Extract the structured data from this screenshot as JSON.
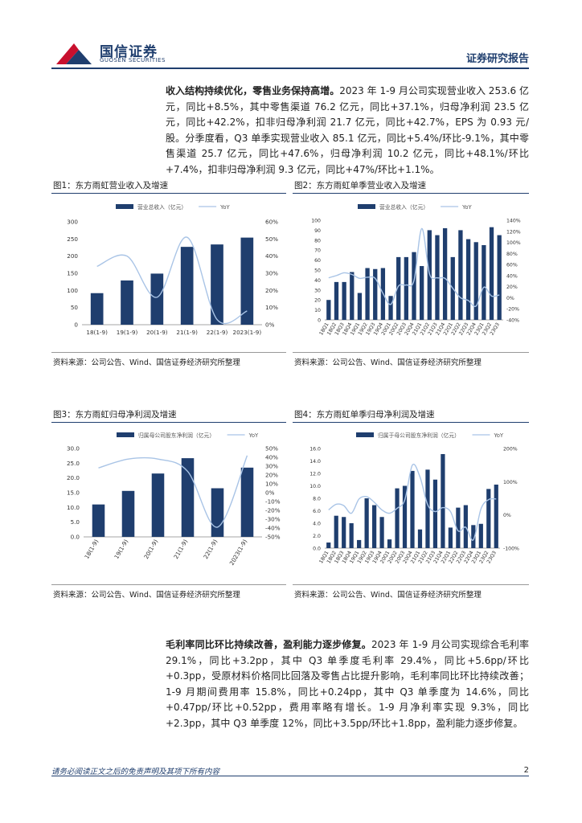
{
  "header": {
    "logo_cn": "国信证券",
    "logo_en": "GUOSEN SECURITIES",
    "report_type": "证券研究报告"
  },
  "para1": {
    "lead": "收入结构持续优化，零售业务保持高增。",
    "body": "2023 年 1-9 月公司实现营业收入 253.6 亿元，同比+8.5%，其中零售渠道 76.2 亿元，同比+37.1%，归母净利润 23.5 亿元，同比+42.2%，扣非归母净利润 21.7 亿元，同比+42.7%，EPS 为 0.93 元/股。分季度看，Q3 单季实现营业收入 85.1 亿元，同比+5.4%/环比-9.1%，其中零售渠道 25.7 亿元，同比+47.6%，归母净利润 10.2 亿元，同比+48.1%/环比+7.4%，扣非归母净利润 9.3 亿元，同比+47%/环比+1.1%。"
  },
  "para2": {
    "lead": "毛利率同比环比持续改善，盈利能力逐步修复。",
    "body": "2023 年 1-9 月公司实现综合毛利率 29.1%，同比+3.2pp，其中 Q3 单季度毛利率 29.4%，同比+5.6pp/环比+0.3pp，受原材料价格同比回落及零售占比提升影响，毛利率同比环比持续改善；1-9 月期间费用率 15.8%，同比+0.24pp，其中 Q3 单季度为 14.6%，同比+0.47pp/环比+0.52pp，费用率略有增长。1-9 月净利率实现 9.3%，同比+2.3pp，其中 Q3 单季度 12%，同比+3.5pp/环比+1.8pp，盈利能力逐步修复。"
  },
  "source_text": "资料来源：公司公告、Wind、国信证券经济研究所整理",
  "footer": {
    "disclaimer": "请务必阅读正文之后的免责声明及其项下所有内容",
    "page": "2"
  },
  "colors": {
    "bar": "#1f3e6e",
    "line": "#a9c4e6",
    "accent": "#c8102e"
  },
  "chart_data": [
    {
      "type": "bar",
      "title": "图1：东方雨虹营业收入及增速",
      "categories": [
        "18(1-9)",
        "19(1-9)",
        "20(1-9)",
        "21(1-9)",
        "22(1-9)",
        "2023(1-9)"
      ],
      "series": [
        {
          "name": "营业总收入（亿元）",
          "type": "bar",
          "values": [
            92,
            129,
            149,
            227,
            234,
            254
          ]
        },
        {
          "name": "YoY",
          "type": "line",
          "axis": "right",
          "values": [
            34,
            40,
            16,
            51,
            3,
            8
          ]
        }
      ],
      "ylim": [
        0,
        300
      ],
      "yticks": [
        "0",
        "50",
        "100",
        "150",
        "200",
        "250",
        "300"
      ],
      "y2lim": [
        0,
        60
      ],
      "y2ticks": [
        "0%",
        "10%",
        "20%",
        "30%",
        "40%",
        "50%",
        "60%"
      ]
    },
    {
      "type": "bar",
      "title": "图2：东方雨虹单季营业收入及增速",
      "categories": [
        "18Q1",
        "18Q2",
        "18Q3",
        "18Q4",
        "19Q1",
        "19Q2",
        "19Q3",
        "19Q4",
        "20Q1",
        "20Q2",
        "20Q3",
        "20Q4",
        "21Q1",
        "21Q2",
        "21Q3",
        "21Q4",
        "22Q1",
        "22Q2",
        "22Q3",
        "22Q4",
        "23Q1",
        "23Q2",
        "23Q3"
      ],
      "series": [
        {
          "name": "营业总收入（亿元）",
          "type": "bar",
          "values": [
            20,
            38,
            38,
            48,
            27,
            52,
            51,
            52,
            24,
            63,
            63,
            68,
            54,
            90,
            85,
            92,
            63,
            90,
            81,
            78,
            75,
            93,
            85
          ]
        },
        {
          "name": "YoY",
          "type": "line",
          "axis": "right",
          "values": [
            36,
            40,
            45,
            42,
            35,
            37,
            35,
            8,
            -12,
            21,
            23,
            31,
            125,
            43,
            36,
            35,
            17,
            0,
            -5,
            -15,
            19,
            3,
            5
          ]
        }
      ],
      "ylim": [
        0,
        100
      ],
      "yticks": [
        "0",
        "10",
        "20",
        "30",
        "40",
        "50",
        "60",
        "70",
        "80",
        "90",
        "100"
      ],
      "y2lim": [
        -40,
        140
      ],
      "y2ticks": [
        "-40%",
        "-20%",
        "0%",
        "20%",
        "40%",
        "60%",
        "80%",
        "100%",
        "120%",
        "140%"
      ]
    },
    {
      "type": "bar",
      "title": "图3：东方雨虹归母净利润及增速",
      "categories": [
        "18(1-9)",
        "19(1-9)",
        "20(1-9)",
        "21(1-9)",
        "22(1-9)",
        "2023(1-9)"
      ],
      "series": [
        {
          "name": "归属母公司股东净利润（亿元）",
          "type": "bar",
          "values": [
            11,
            15.6,
            21.5,
            26.7,
            16.5,
            23.5
          ]
        },
        {
          "name": "YoY",
          "type": "line",
          "axis": "right",
          "values": [
            28,
            38,
            38,
            24,
            -39,
            42
          ]
        }
      ],
      "ylim": [
        0,
        30
      ],
      "yticks": [
        "0.0",
        "5.0",
        "10.0",
        "15.0",
        "20.0",
        "25.0",
        "30.0"
      ],
      "y2lim": [
        -50,
        50
      ],
      "y2ticks": [
        "-50%",
        "-40%",
        "-30%",
        "-20%",
        "-10%",
        "0%",
        "10%",
        "20%",
        "30%",
        "40%",
        "50%"
      ]
    },
    {
      "type": "bar",
      "title": "图4：东方雨虹单季归母净利润及增速",
      "categories": [
        "18Q1",
        "18Q2",
        "18Q3",
        "18Q4",
        "19Q1",
        "19Q2",
        "19Q3",
        "19Q4",
        "20Q1",
        "20Q2",
        "20Q3",
        "20Q4",
        "21Q1",
        "21Q2",
        "21Q3",
        "21Q4",
        "22Q1",
        "22Q2",
        "22Q3",
        "22Q4",
        "23Q1",
        "23Q2",
        "23Q3"
      ],
      "series": [
        {
          "name": "归属于母公司股东净利润（亿元）",
          "type": "bar",
          "values": [
            0.9,
            5.2,
            5.0,
            4.0,
            1.3,
            8.0,
            6.9,
            5.0,
            1.4,
            9.6,
            10.0,
            12.4,
            3.0,
            12.6,
            11.0,
            15.1,
            3.3,
            6.5,
            6.9,
            3.7,
            3.9,
            9.5,
            10.2
          ]
        },
        {
          "name": "YoY",
          "type": "line",
          "axis": "right",
          "values": [
            15,
            32,
            28,
            5,
            48,
            55,
            38,
            15,
            5,
            20,
            45,
            150,
            114,
            31,
            10,
            22,
            10,
            -48,
            -37,
            -75,
            18,
            46,
            48
          ]
        }
      ],
      "ylim": [
        0,
        16
      ],
      "yticks": [
        "0.0",
        "2.0",
        "4.0",
        "6.0",
        "8.0",
        "10.0",
        "12.0",
        "14.0",
        "16.0"
      ],
      "y2lim": [
        -100,
        200
      ],
      "y2ticks": [
        "-100%",
        "0%",
        "100%",
        "200%"
      ]
    }
  ]
}
